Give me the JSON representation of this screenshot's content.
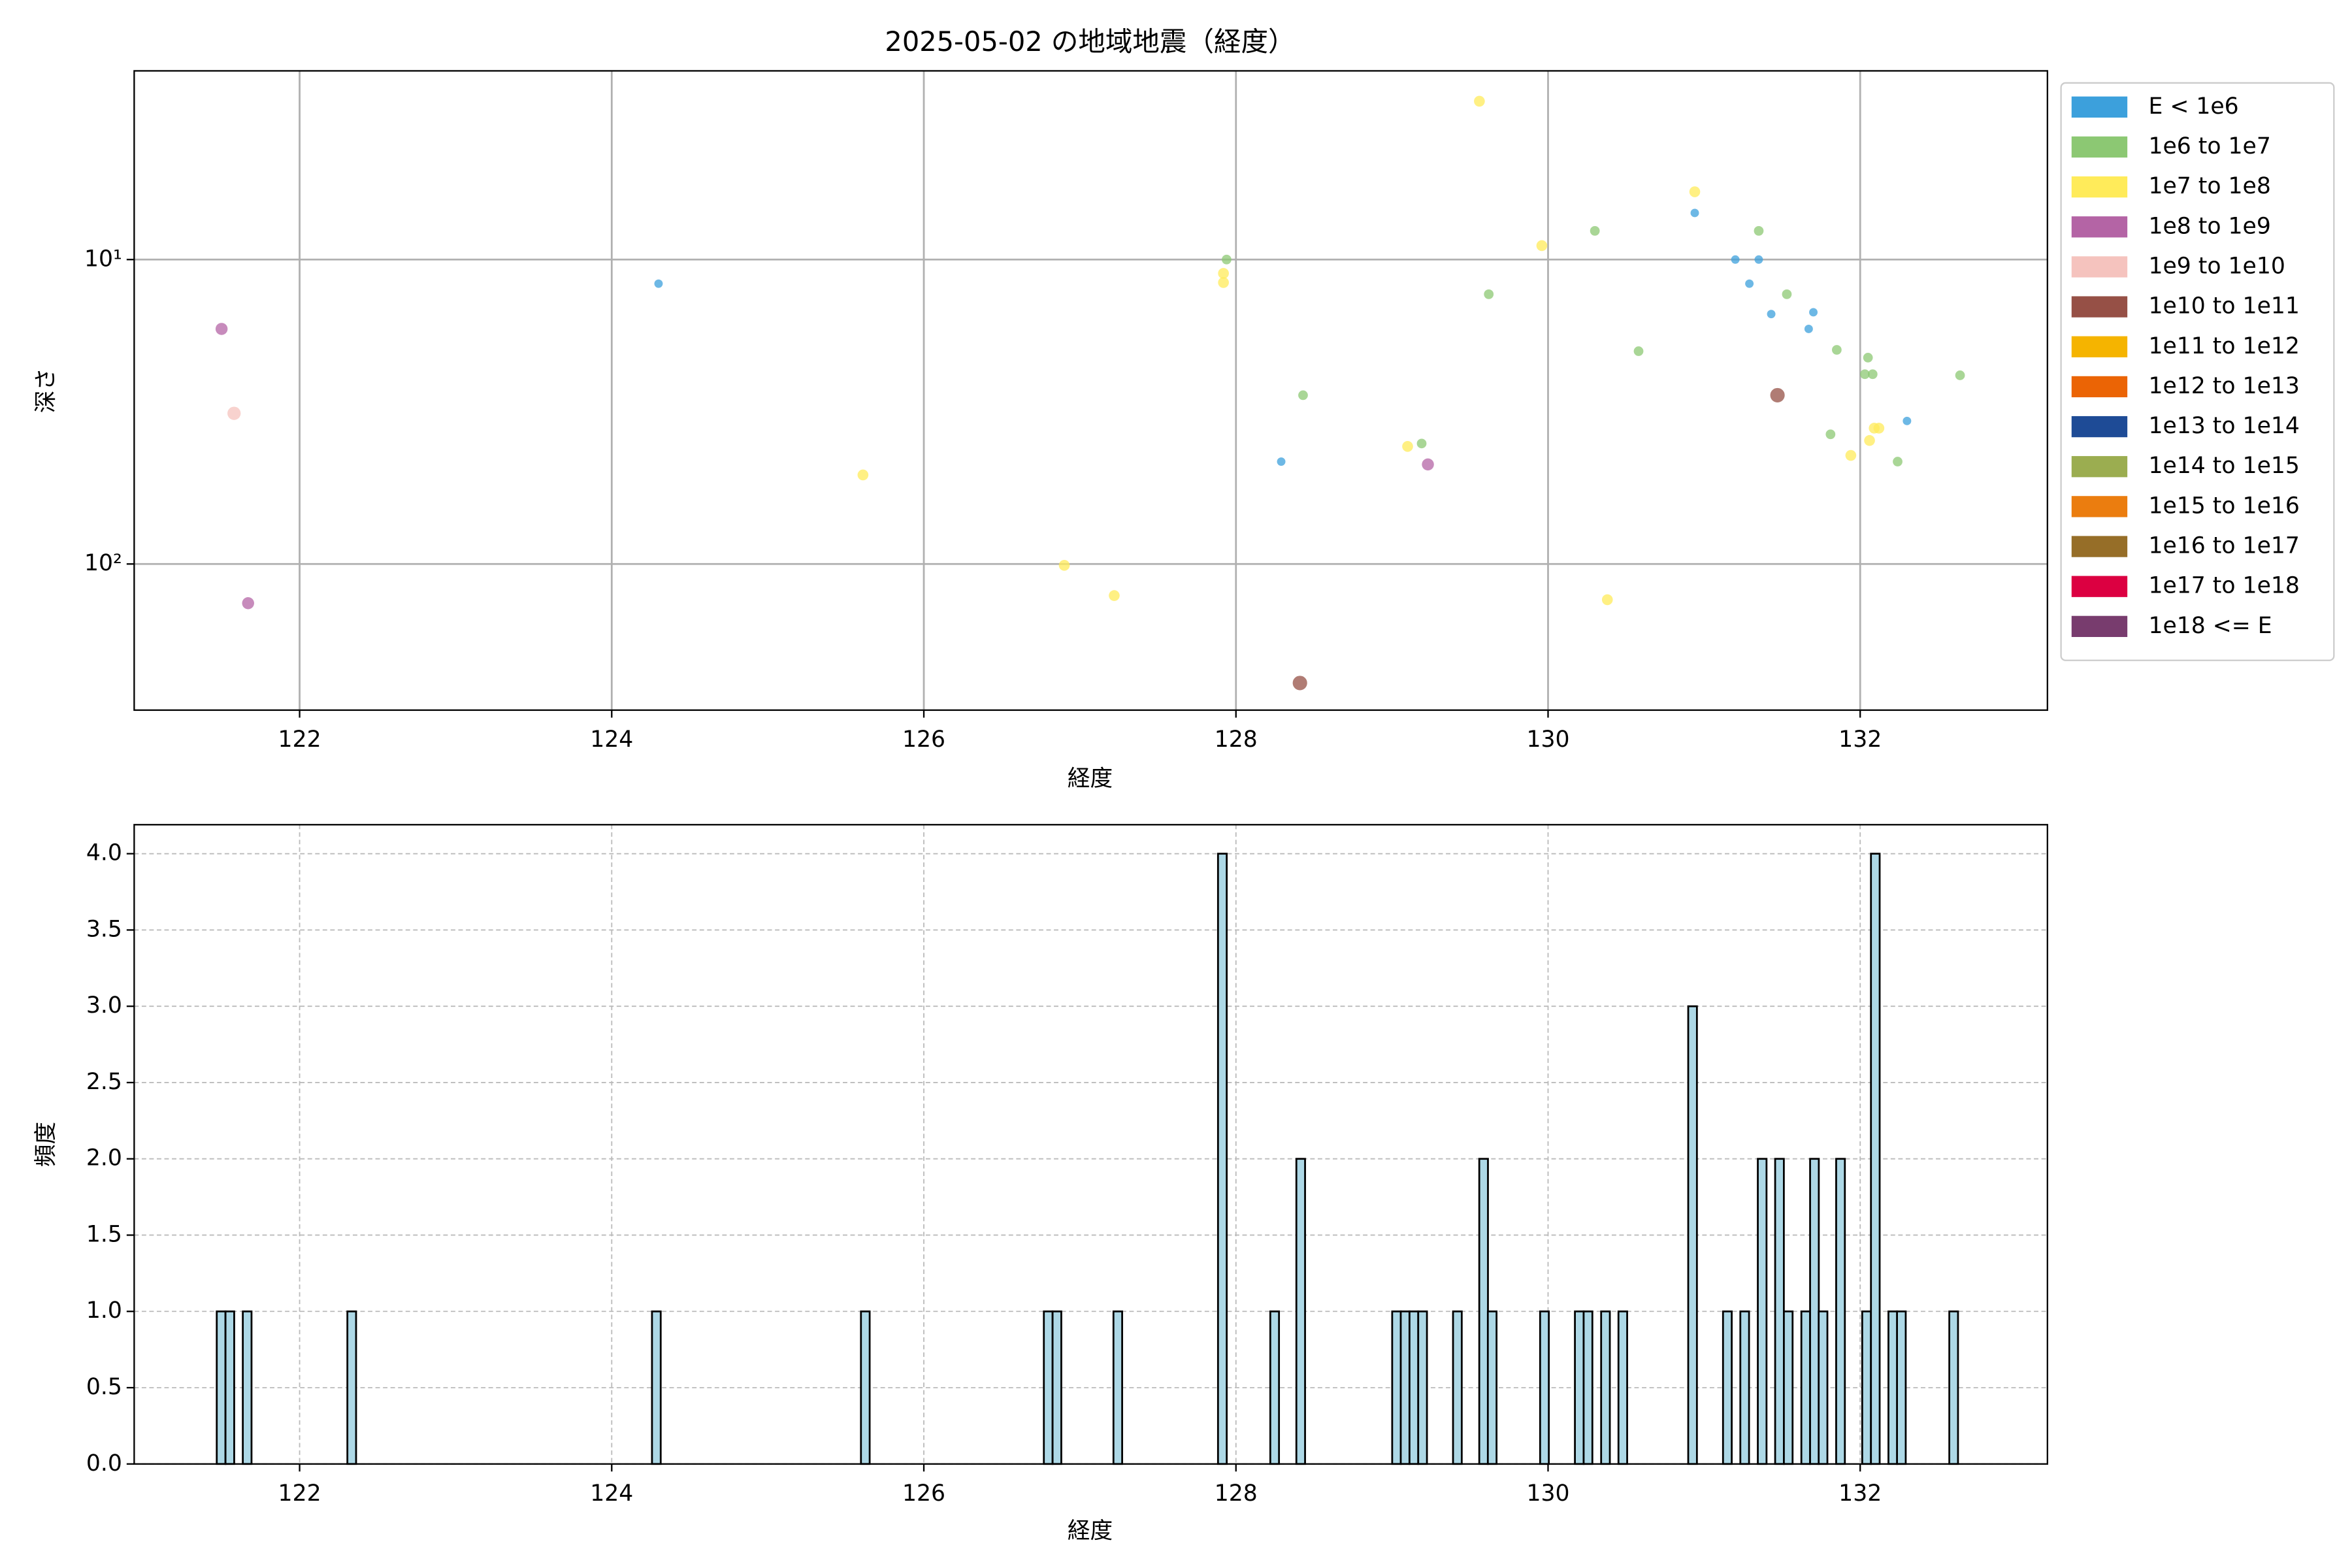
{
  "chart_data": [
    {
      "type": "scatter",
      "title": "2025-05-02 の地域地震（経度）",
      "x_label": "経度",
      "y_label": "深さ",
      "xlim": [
        120.94,
        133.2
      ],
      "xticks": [
        122,
        124,
        126,
        128,
        130,
        132
      ],
      "ylim": [
        302,
        2.4
      ],
      "yscale": "log",
      "yticks": [
        {
          "value": 10,
          "label": "10¹"
        },
        {
          "value": 100,
          "label": "10²"
        }
      ],
      "grid": true,
      "grid_style": "solid",
      "legend": "outside right",
      "series": [
        {
          "name": "E < 1e6",
          "color": "#3ca0dc",
          "x": [
            124.3,
            128.29,
            130.94,
            131.2,
            131.35,
            131.29,
            131.43,
            131.7,
            131.67,
            132.3
          ],
          "y": [
            12.0,
            46.1,
            7.03,
            10.0,
            10.0,
            12.0,
            15.1,
            14.9,
            16.9,
            33.9
          ]
        },
        {
          "name": "1e6 to 1e7",
          "color": "#8cc873",
          "x": [
            127.94,
            129.62,
            130.3,
            131.35,
            131.53,
            130.58,
            128.43,
            129.19,
            131.85,
            132.05,
            132.03,
            132.08,
            132.64,
            131.81,
            132.24
          ],
          "y": [
            10.0,
            13.0,
            8.05,
            8.05,
            13.0,
            20.0,
            27.9,
            40.2,
            19.8,
            21.0,
            23.8,
            23.8,
            24.0,
            37.5,
            46.1
          ]
        },
        {
          "name": "1e7 to 1e8",
          "color": "#ffeb5a",
          "x": [
            129.56,
            127.92,
            127.92,
            129.96,
            130.94,
            125.61,
            126.9,
            127.22,
            129.1,
            130.38,
            131.94,
            132.06,
            132.09,
            132.12
          ],
          "y": [
            3.02,
            11.1,
            11.9,
            9.0,
            5.99,
            51.0,
            101,
            127,
            41.1,
            131,
            44.0,
            39.3,
            35.8,
            35.8
          ]
        },
        {
          "name": "1e8 to 1e9",
          "color": "#b464a5",
          "x": [
            121.5,
            121.67,
            129.23
          ],
          "y": [
            16.9,
            134.5,
            47.1
          ]
        },
        {
          "name": "1e9 to 1e10",
          "color": "#f5c3be",
          "x": [
            121.58
          ],
          "y": [
            32.0
          ]
        },
        {
          "name": "1e10 to 1e11",
          "color": "#965046",
          "x": [
            128.41,
            131.47
          ],
          "y": [
            246,
            27.9
          ]
        },
        {
          "name": "1e11 to 1e12",
          "color": "#f5b400",
          "x": [],
          "y": []
        },
        {
          "name": "1e12 to 1e13",
          "color": "#eb6405",
          "x": [],
          "y": []
        },
        {
          "name": "1e13 to 1e14",
          "color": "#1e4b96",
          "x": [],
          "y": []
        },
        {
          "name": "1e14 to 1e15",
          "color": "#9bad50",
          "x": [],
          "y": []
        },
        {
          "name": "1e15 to 1e16",
          "color": "#eb7d0f",
          "x": [],
          "y": []
        },
        {
          "name": "1e16 to 1e17",
          "color": "#966e28",
          "x": [],
          "y": []
        },
        {
          "name": "1e17 to 1e18",
          "color": "#dc0041",
          "x": [],
          "y": []
        },
        {
          "name": "1e18 <= E",
          "color": "#783c6e",
          "x": [],
          "y": []
        }
      ]
    },
    {
      "type": "bar",
      "x_label": "経度",
      "y_label": "頻度",
      "xlim": [
        120.94,
        133.2
      ],
      "xticks": [
        122,
        124,
        126,
        128,
        130,
        132
      ],
      "ylim": [
        0,
        4.19
      ],
      "yticks": [
        {
          "value": 0,
          "label": "0.0"
        },
        {
          "value": 0.5,
          "label": "0.5"
        },
        {
          "value": 1,
          "label": "1.0"
        },
        {
          "value": 1.5,
          "label": "1.5"
        },
        {
          "value": 2,
          "label": "2.0"
        },
        {
          "value": 2.5,
          "label": "2.5"
        },
        {
          "value": 3,
          "label": "3.0"
        },
        {
          "value": 3.5,
          "label": "3.5"
        },
        {
          "value": 4,
          "label": "4.0"
        }
      ],
      "grid": true,
      "grid_style": "dashed",
      "color": "#add8e6",
      "edge_color": "#000000",
      "bar_width": 0.0558,
      "x": [
        121.497,
        121.553,
        121.664,
        122.334,
        124.286,
        125.625,
        126.797,
        126.853,
        127.243,
        127.913,
        128.248,
        128.415,
        129.029,
        129.084,
        129.14,
        129.196,
        129.419,
        129.587,
        129.642,
        129.977,
        130.2,
        130.256,
        130.368,
        130.479,
        130.926,
        131.149,
        131.26,
        131.372,
        131.483,
        131.539,
        131.651,
        131.707,
        131.762,
        131.874,
        132.041,
        132.097,
        132.209,
        132.264,
        132.599
      ],
      "values": [
        1,
        1,
        1,
        1,
        1,
        1,
        1,
        1,
        1,
        4,
        1,
        2,
        1,
        1,
        1,
        1,
        1,
        2,
        1,
        1,
        1,
        1,
        1,
        1,
        3,
        1,
        1,
        2,
        2,
        1,
        1,
        2,
        1,
        2,
        1,
        4,
        1,
        1,
        1
      ]
    }
  ]
}
